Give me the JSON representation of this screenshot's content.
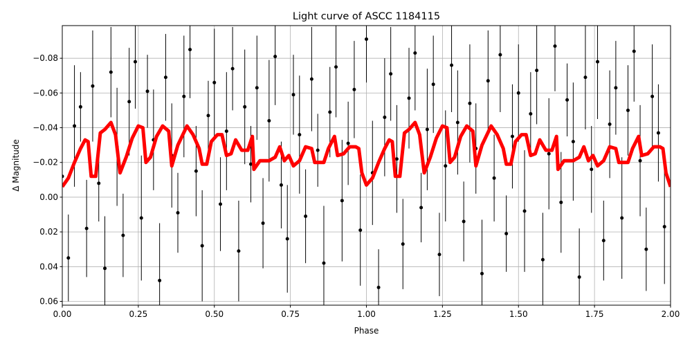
{
  "chart_data": {
    "type": "errorbar",
    "title": "Light curve of ASCC 1184115",
    "x_label": "Phase",
    "y_label": "Δ Magnitude",
    "xlim": [
      0,
      2
    ],
    "ylim": [
      -0.0988,
      0.0622
    ],
    "y_inverted": true,
    "grid": true,
    "xticks": [
      {
        "value": 0,
        "label": "0.00"
      },
      0.25,
      {
        "value": 0.5,
        "label": "0.50"
      },
      0.75,
      {
        "value": 1,
        "label": "1.00"
      },
      1.25,
      {
        "value": 1.5,
        "label": "1.50"
      },
      1.75,
      {
        "value": 2,
        "label": "2.00"
      }
    ],
    "yticks": [
      {
        "value": -0.08,
        "label": "−0.08"
      },
      {
        "value": -0.06,
        "label": "−0.06"
      },
      {
        "value": -0.04,
        "label": "−0.04"
      },
      {
        "value": -0.02,
        "label": "−0.02"
      },
      {
        "value": 0,
        "label": "0.00"
      },
      0.02,
      0.04,
      0.06
    ],
    "series": [
      {
        "kind": "errorbar",
        "color": "#000000",
        "x": [
          0,
          0.02,
          0.04,
          0.06,
          0.08,
          0.1,
          0.12,
          0.14,
          0.16,
          0.18,
          0.2,
          0.22,
          0.24,
          0.26,
          0.28,
          0.3,
          0.32,
          0.34,
          0.36,
          0.38,
          0.4,
          0.42,
          0.44,
          0.46,
          0.48,
          0.5,
          0.52,
          0.54,
          0.56,
          0.58,
          0.6,
          0.62,
          0.64,
          0.66,
          0.68,
          0.7,
          0.72,
          0.74,
          0.76,
          0.78,
          0.8,
          0.82,
          0.84,
          0.86,
          0.88,
          0.9,
          0.92,
          0.94,
          0.96,
          0.98,
          1,
          1.02,
          1.04,
          1.06,
          1.08,
          1.1,
          1.12,
          1.14,
          1.16,
          1.18,
          1.2,
          1.22,
          1.24,
          1.26,
          1.28,
          1.3,
          1.32,
          1.34,
          1.36,
          1.38,
          1.4,
          1.42,
          1.44,
          1.46,
          1.48,
          1.5,
          1.52,
          1.54,
          1.56,
          1.58,
          1.6,
          1.62,
          1.64,
          1.66,
          1.68,
          1.7,
          1.72,
          1.74,
          1.76,
          1.78,
          1.8,
          1.82,
          1.84,
          1.86,
          1.88,
          1.9,
          1.92,
          1.94,
          1.96,
          1.98
        ],
        "values": [
          -0.012,
          0.035,
          -0.041,
          -0.052,
          0.018,
          -0.064,
          -0.008,
          0.041,
          -0.072,
          -0.029,
          0.022,
          -0.055,
          -0.078,
          0.012,
          -0.061,
          -0.033,
          0.048,
          -0.069,
          -0.024,
          0.009,
          -0.058,
          -0.085,
          -0.015,
          0.028,
          -0.047,
          -0.066,
          0.004,
          -0.038,
          -0.074,
          0.031,
          -0.052,
          -0.019,
          -0.063,
          0.015,
          -0.044,
          -0.081,
          -0.007,
          0.024,
          -0.059,
          -0.036,
          0.011,
          -0.068,
          -0.027,
          0.038,
          -0.049,
          -0.075,
          0.002,
          -0.031,
          -0.062,
          0.019,
          -0.091,
          -0.014,
          0.052,
          -0.046,
          -0.071,
          -0.022,
          0.027,
          -0.057,
          -0.083,
          0.006,
          -0.039,
          -0.065,
          0.033,
          -0.018,
          -0.076,
          -0.043,
          0.014,
          -0.054,
          -0.028,
          0.044,
          -0.067,
          -0.011,
          -0.082,
          0.021,
          -0.035,
          -0.06,
          0.008,
          -0.048,
          -0.073,
          0.036,
          -0.025,
          -0.087,
          0.003,
          -0.056,
          -0.032,
          0.046,
          -0.069,
          -0.016,
          -0.078,
          0.025,
          -0.042,
          -0.063,
          0.012,
          -0.05,
          -0.084,
          -0.021,
          0.03,
          -0.058,
          -0.037,
          0.017
        ],
        "errors": [
          0.03,
          0.025,
          0.035,
          0.02,
          0.028,
          0.032,
          0.022,
          0.03,
          0.026,
          0.034,
          0.024,
          0.031,
          0.027,
          0.036,
          0.021,
          0.029,
          0.033,
          0.025,
          0.03,
          0.023,
          0.035,
          0.028,
          0.026,
          0.032,
          0.02,
          0.031,
          0.027,
          0.034,
          0.024,
          0.029,
          0.033,
          0.022,
          0.03,
          0.026,
          0.035,
          0.028,
          0.025,
          0.031,
          0.023,
          0.034,
          0.027,
          0.03,
          0.021,
          0.033,
          0.026,
          0.029,
          0.035,
          0.024,
          0.028,
          0.032,
          0.025,
          0.03,
          0.022,
          0.034,
          0.027,
          0.031,
          0.026,
          0.029,
          0.033,
          0.02,
          0.035,
          0.028,
          0.024,
          0.032,
          0.027,
          0.03,
          0.023,
          0.034,
          0.026,
          0.031,
          0.029,
          0.025,
          0.033,
          0.022,
          0.03,
          0.028,
          0.035,
          0.024,
          0.031,
          0.027,
          0.032,
          0.026,
          0.029,
          0.021,
          0.034,
          0.028,
          0.03,
          0.025,
          0.033,
          0.023,
          0.031,
          0.027,
          0.035,
          0.026,
          0.029,
          0.032,
          0.024,
          0.03,
          0.028,
          0.033
        ]
      },
      {
        "kind": "line",
        "color": "#ff0000",
        "x": [
          0,
          0.02,
          0.04,
          0.06,
          0.075,
          0.085,
          0.095,
          0.11,
          0.125,
          0.14,
          0.16,
          0.175,
          0.19,
          0.21,
          0.23,
          0.25,
          0.265,
          0.275,
          0.29,
          0.31,
          0.33,
          0.35,
          0.36,
          0.38,
          0.41,
          0.43,
          0.45,
          0.46,
          0.475,
          0.49,
          0.51,
          0.525,
          0.54,
          0.555,
          0.57,
          0.59,
          0.61,
          0.625,
          0.63,
          0.65,
          0.68,
          0.7,
          0.715,
          0.73,
          0.745,
          0.76,
          0.78,
          0.8,
          0.82,
          0.83,
          0.86,
          0.875,
          0.895,
          0.905,
          0.925,
          0.945,
          0.965,
          0.975,
          0.985,
          1,
          1.02,
          1.04,
          1.06,
          1.075,
          1.085,
          1.095,
          1.11,
          1.125,
          1.14,
          1.16,
          1.175,
          1.19,
          1.21,
          1.23,
          1.25,
          1.265,
          1.275,
          1.29,
          1.31,
          1.33,
          1.35,
          1.36,
          1.38,
          1.41,
          1.43,
          1.45,
          1.46,
          1.475,
          1.49,
          1.51,
          1.525,
          1.54,
          1.555,
          1.57,
          1.59,
          1.61,
          1.625,
          1.63,
          1.65,
          1.68,
          1.7,
          1.715,
          1.73,
          1.745,
          1.76,
          1.78,
          1.8,
          1.82,
          1.83,
          1.86,
          1.875,
          1.895,
          1.905,
          1.925,
          1.945,
          1.965,
          1.975,
          1.985,
          2
        ],
        "values": [
          -0.006,
          -0.011,
          -0.02,
          -0.028,
          -0.033,
          -0.032,
          -0.012,
          -0.012,
          -0.037,
          -0.039,
          -0.043,
          -0.036,
          -0.014,
          -0.023,
          -0.034,
          -0.041,
          -0.04,
          -0.02,
          -0.023,
          -0.035,
          -0.041,
          -0.038,
          -0.018,
          -0.03,
          -0.041,
          -0.036,
          -0.028,
          -0.019,
          -0.019,
          -0.032,
          -0.036,
          -0.036,
          -0.024,
          -0.025,
          -0.033,
          -0.027,
          -0.027,
          -0.035,
          -0.016,
          -0.021,
          -0.021,
          -0.023,
          -0.029,
          -0.021,
          -0.024,
          -0.018,
          -0.021,
          -0.029,
          -0.028,
          -0.02,
          -0.02,
          -0.028,
          -0.035,
          -0.024,
          -0.025,
          -0.029,
          -0.029,
          -0.028,
          -0.014,
          -0.007,
          -0.011,
          -0.02,
          -0.028,
          -0.033,
          -0.032,
          -0.012,
          -0.012,
          -0.037,
          -0.039,
          -0.043,
          -0.036,
          -0.014,
          -0.023,
          -0.034,
          -0.041,
          -0.04,
          -0.02,
          -0.023,
          -0.035,
          -0.041,
          -0.038,
          -0.018,
          -0.03,
          -0.041,
          -0.036,
          -0.028,
          -0.019,
          -0.019,
          -0.032,
          -0.036,
          -0.036,
          -0.024,
          -0.025,
          -0.033,
          -0.027,
          -0.027,
          -0.035,
          -0.016,
          -0.021,
          -0.021,
          -0.023,
          -0.029,
          -0.021,
          -0.024,
          -0.018,
          -0.021,
          -0.029,
          -0.028,
          -0.02,
          -0.02,
          -0.028,
          -0.035,
          -0.024,
          -0.025,
          -0.029,
          -0.029,
          -0.028,
          -0.014,
          -0.006
        ]
      }
    ]
  }
}
